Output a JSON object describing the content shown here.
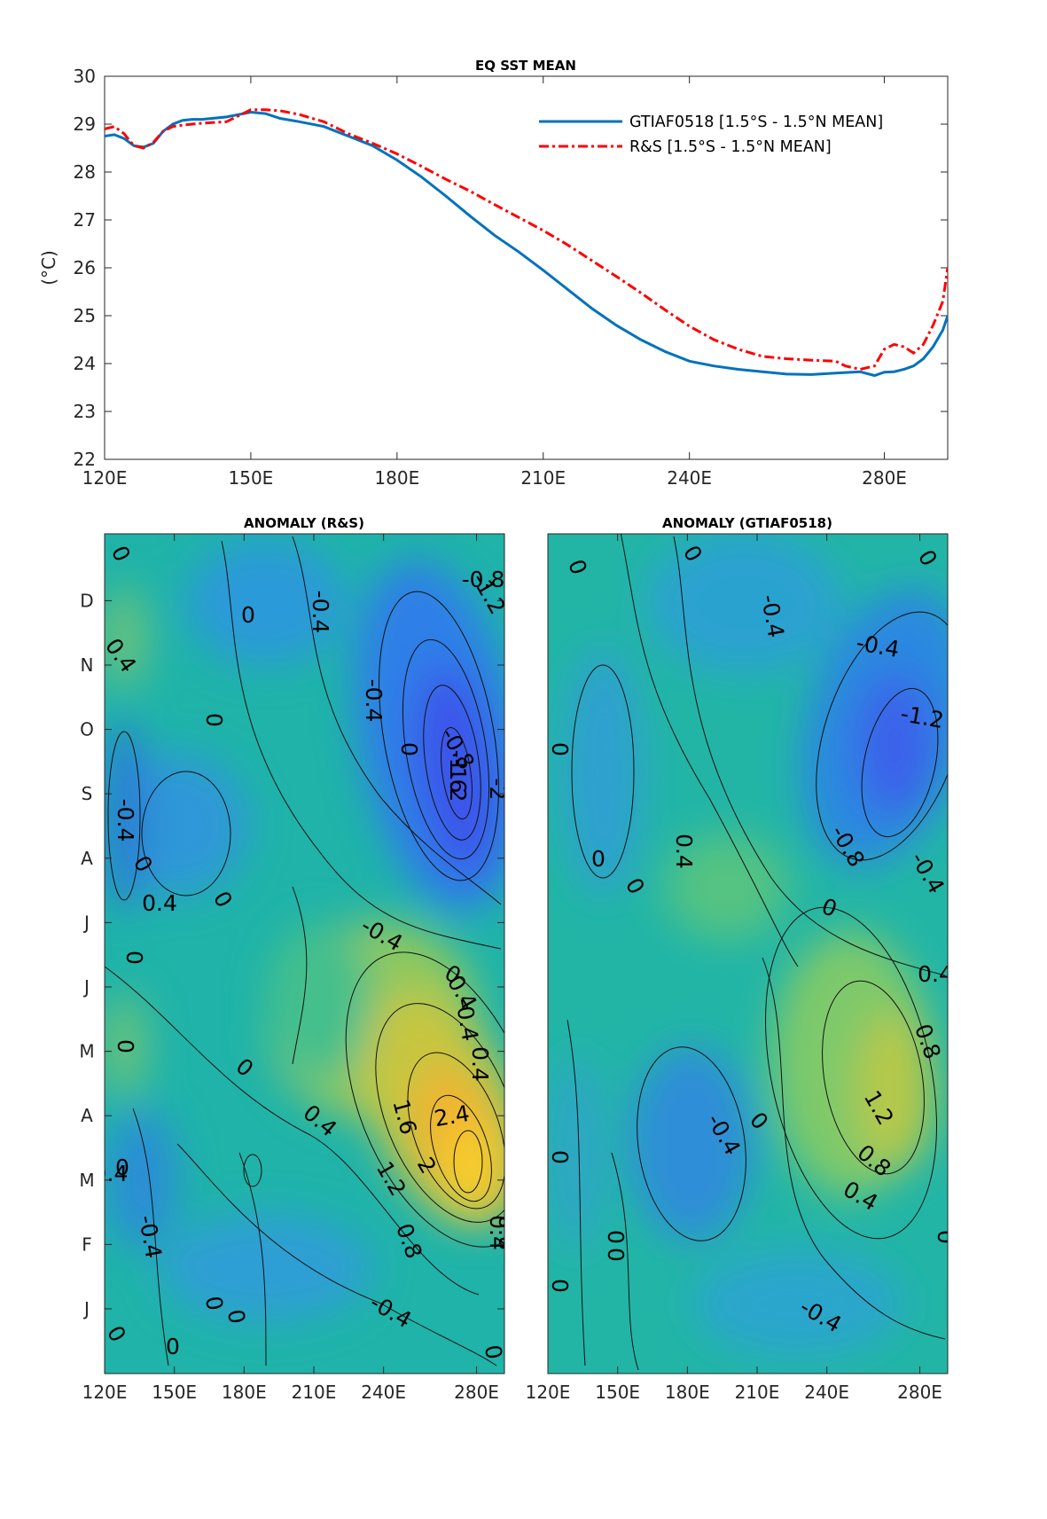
{
  "chart_data": [
    {
      "type": "line",
      "title": "EQ SST MEAN",
      "ylabel": "(°C)",
      "xlim": [
        120,
        293
      ],
      "ylim": [
        22,
        30
      ],
      "x_ticks": [
        120,
        150,
        180,
        210,
        240,
        280
      ],
      "x_tick_labels": [
        "120E",
        "150E",
        "180E",
        "210E",
        "240E",
        "280E"
      ],
      "y_ticks": [
        22,
        23,
        24,
        25,
        26,
        27,
        28,
        29,
        30
      ],
      "y_tick_labels": [
        "22",
        "23",
        "24",
        "25",
        "26",
        "27",
        "28",
        "29",
        "30"
      ],
      "grid": false,
      "legend_position": "top-right",
      "series": [
        {
          "name": "GTIAF0518 [1.5°S - 1.5°N MEAN]",
          "color": "#0072bd",
          "style": "solid",
          "x": [
            120,
            122,
            124,
            126,
            128,
            130,
            132,
            134,
            136,
            138,
            140,
            145,
            150,
            153,
            156,
            160,
            165,
            170,
            175,
            180,
            185,
            190,
            195,
            200,
            205,
            210,
            215,
            220,
            225,
            230,
            235,
            240,
            245,
            250,
            255,
            260,
            265,
            270,
            275,
            278,
            280,
            282,
            284,
            286,
            288,
            290,
            292,
            293
          ],
          "y": [
            28.75,
            28.78,
            28.7,
            28.55,
            28.52,
            28.6,
            28.85,
            29.0,
            29.08,
            29.1,
            29.1,
            29.15,
            29.25,
            29.22,
            29.12,
            29.05,
            28.95,
            28.75,
            28.55,
            28.25,
            27.9,
            27.5,
            27.08,
            26.68,
            26.33,
            25.95,
            25.55,
            25.15,
            24.8,
            24.5,
            24.25,
            24.05,
            23.95,
            23.88,
            23.83,
            23.78,
            23.77,
            23.8,
            23.83,
            23.75,
            23.82,
            23.83,
            23.88,
            23.95,
            24.1,
            24.35,
            24.7,
            25.0
          ]
        },
        {
          "name": "R&S [1.5°S - 1.5°N MEAN]",
          "color": "#ff0000",
          "style": "dashdot",
          "x": [
            120,
            122,
            124,
            126,
            128,
            130,
            132,
            134,
            136,
            138,
            140,
            145,
            150,
            153,
            156,
            160,
            165,
            170,
            175,
            180,
            185,
            190,
            195,
            200,
            205,
            210,
            215,
            220,
            225,
            230,
            235,
            240,
            245,
            250,
            255,
            260,
            265,
            270,
            272,
            275,
            278,
            280,
            282,
            284,
            286,
            288,
            290,
            292,
            293
          ],
          "y": [
            28.9,
            28.95,
            28.8,
            28.55,
            28.5,
            28.62,
            28.85,
            28.95,
            28.98,
            29.0,
            29.02,
            29.05,
            29.3,
            29.3,
            29.28,
            29.2,
            29.05,
            28.8,
            28.6,
            28.38,
            28.12,
            27.85,
            27.6,
            27.32,
            27.05,
            26.78,
            26.48,
            26.15,
            25.82,
            25.48,
            25.12,
            24.78,
            24.5,
            24.3,
            24.15,
            24.1,
            24.07,
            24.05,
            23.95,
            23.88,
            23.95,
            24.3,
            24.4,
            24.35,
            24.22,
            24.4,
            24.8,
            25.3,
            26.0
          ]
        }
      ]
    },
    {
      "type": "heatmap",
      "title": "ANOMALY (R&S)",
      "xlim": [
        120,
        292
      ],
      "x_ticks": [
        120,
        150,
        180,
        210,
        240,
        280
      ],
      "x_tick_labels": [
        "120E",
        "150E",
        "180E",
        "210E",
        "240E",
        "280E"
      ],
      "y_tick_labels": [
        "J",
        "F",
        "M",
        "A",
        "M",
        "J",
        "J",
        "A",
        "S",
        "O",
        "N",
        "D"
      ],
      "contour_labels": [
        "0",
        "-0.4",
        "0",
        "0.4",
        "0",
        "-0.4",
        "0",
        "-0.8",
        "-1.2",
        "-1.6",
        "-2",
        "-1.2",
        "-0.8",
        "-0.4",
        "0",
        "0.4",
        "0",
        "-0.4",
        "0",
        "0",
        "0",
        "-0.4",
        "0.4",
        "0.4",
        "0",
        "0.4",
        "1.6",
        "2.4",
        "2",
        "1.2",
        "0.8",
        "0.8",
        "0.4",
        "0",
        "-0.4",
        "0",
        "0",
        "-0.4",
        "0",
        "0",
        "0",
        "-0.4"
      ]
    },
    {
      "type": "heatmap",
      "title": "ANOMALY (GTIAF0518)",
      "xlim": [
        120,
        292
      ],
      "x_ticks": [
        120,
        150,
        180,
        210,
        240,
        280
      ],
      "x_tick_labels": [
        "120E",
        "150E",
        "180E",
        "210E",
        "240E",
        "280E"
      ],
      "contour_labels": [
        "0",
        "0",
        "0",
        "-0.4",
        "-0.4",
        "-1.2",
        "0",
        "0.4",
        "0",
        "0",
        "-0.8",
        "-0.4",
        "0",
        "0.4",
        "0.8",
        "1.2",
        "-0.4",
        "0",
        "0.8",
        "0.4",
        "0",
        "0",
        "0",
        "0",
        "0",
        "-0.4"
      ]
    }
  ]
}
